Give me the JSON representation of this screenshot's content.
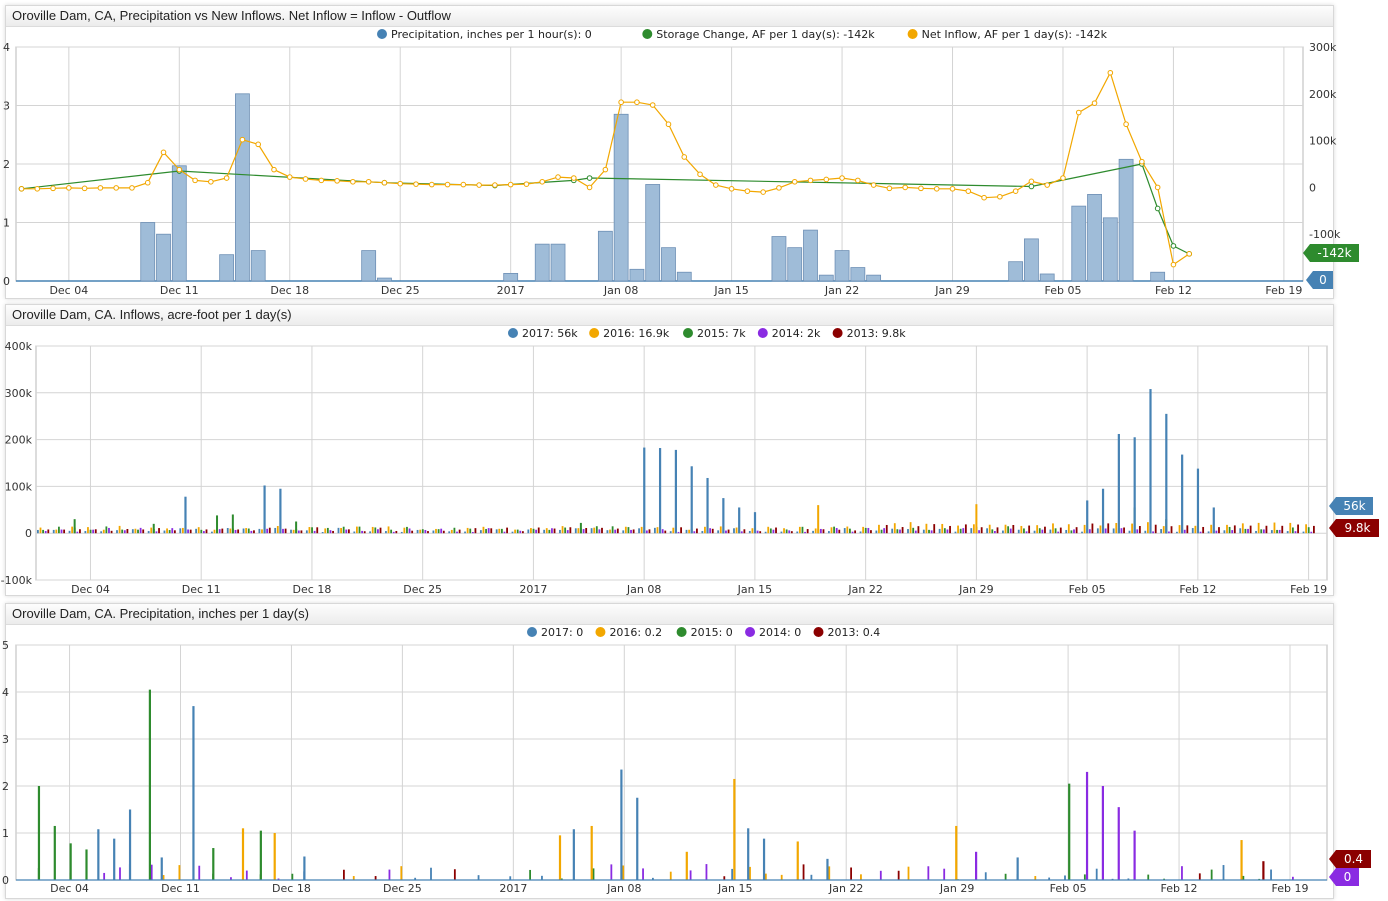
{
  "colors": {
    "blue": "#4682b4",
    "bar_fill": "#9fbcd8",
    "orange": "#f2a700",
    "green": "#2e8b2e",
    "purple": "#8a2be2",
    "maroon": "#8b0000",
    "grid": "#d4d4d4"
  },
  "chart_data": [
    {
      "type": "bar",
      "title": "Oroville Dam, CA, Precipitation vs New Inflows. Net Inflow = Inflow - Outflow",
      "legend": [
        "Precipitation, inches per 1 hour(s): 0",
        "Storage Change, AF per 1 day(s): -142k",
        "Net Inflow, AF per 1 day(s): -142k"
      ],
      "x_ticks": [
        "Dec 04",
        "Dec 11",
        "Dec 18",
        "Dec 25",
        "2017",
        "Jan 08",
        "Jan 15",
        "Jan 22",
        "Jan 29",
        "Feb 05",
        "Feb 12",
        "Feb 19"
      ],
      "y_left_ticks": [
        "4",
        "3",
        "2",
        "1",
        "0"
      ],
      "y_right_ticks": [
        "300k",
        "200k",
        "100k",
        "0",
        "-100k"
      ],
      "ylim_left": [
        0,
        4
      ],
      "ylim_right": [
        -200000,
        300000
      ],
      "badges": [
        "-142k",
        "0"
      ],
      "precip_bars": [
        {
          "day": 8,
          "value": 1.0
        },
        {
          "day": 9,
          "value": 0.8
        },
        {
          "day": 10,
          "value": 1.97
        },
        {
          "day": 13,
          "value": 0.45
        },
        {
          "day": 14,
          "value": 3.2
        },
        {
          "day": 15,
          "value": 0.52
        },
        {
          "day": 22,
          "value": 0.52
        },
        {
          "day": 23,
          "value": 0.05
        },
        {
          "day": 31,
          "value": 0.13
        },
        {
          "day": 33,
          "value": 0.63
        },
        {
          "day": 34,
          "value": 0.63
        },
        {
          "day": 37,
          "value": 0.85
        },
        {
          "day": 38,
          "value": 2.85
        },
        {
          "day": 39,
          "value": 0.2
        },
        {
          "day": 40,
          "value": 1.65
        },
        {
          "day": 41,
          "value": 0.57
        },
        {
          "day": 42,
          "value": 0.15
        },
        {
          "day": 48,
          "value": 0.76
        },
        {
          "day": 49,
          "value": 0.57
        },
        {
          "day": 50,
          "value": 0.87
        },
        {
          "day": 51,
          "value": 0.1
        },
        {
          "day": 52,
          "value": 0.52
        },
        {
          "day": 53,
          "value": 0.23
        },
        {
          "day": 54,
          "value": 0.1
        },
        {
          "day": 63,
          "value": 0.33
        },
        {
          "day": 64,
          "value": 0.72
        },
        {
          "day": 65,
          "value": 0.12
        },
        {
          "day": 67,
          "value": 1.28
        },
        {
          "day": 68,
          "value": 1.48
        },
        {
          "day": 69,
          "value": 1.08
        },
        {
          "day": 70,
          "value": 2.08
        },
        {
          "day": 72,
          "value": 0.15
        }
      ],
      "net_inflow": [
        {
          "day": 0,
          "value": -3000
        },
        {
          "day": 1,
          "value": -3000
        },
        {
          "day": 2,
          "value": -2000
        },
        {
          "day": 3,
          "value": -1000
        },
        {
          "day": 4,
          "value": -2000
        },
        {
          "day": 5,
          "value": -1000
        },
        {
          "day": 6,
          "value": -1000
        },
        {
          "day": 7,
          "value": -1000
        },
        {
          "day": 8,
          "value": 10000
        },
        {
          "day": 9,
          "value": 75000
        },
        {
          "day": 10,
          "value": 38000
        },
        {
          "day": 11,
          "value": 15000
        },
        {
          "day": 12,
          "value": 12000
        },
        {
          "day": 13,
          "value": 20000
        },
        {
          "day": 14,
          "value": 102000
        },
        {
          "day": 15,
          "value": 92000
        },
        {
          "day": 16,
          "value": 38000
        },
        {
          "day": 17,
          "value": 22000
        },
        {
          "day": 18,
          "value": 18000
        },
        {
          "day": 19,
          "value": 15000
        },
        {
          "day": 20,
          "value": 14000
        },
        {
          "day": 21,
          "value": 12000
        },
        {
          "day": 22,
          "value": 12000
        },
        {
          "day": 23,
          "value": 10000
        },
        {
          "day": 24,
          "value": 8000
        },
        {
          "day": 25,
          "value": 7000
        },
        {
          "day": 26,
          "value": 6000
        },
        {
          "day": 27,
          "value": 6000
        },
        {
          "day": 28,
          "value": 6000
        },
        {
          "day": 29,
          "value": 5000
        },
        {
          "day": 30,
          "value": 5000
        },
        {
          "day": 31,
          "value": 6000
        },
        {
          "day": 32,
          "value": 7000
        },
        {
          "day": 33,
          "value": 12000
        },
        {
          "day": 34,
          "value": 22000
        },
        {
          "day": 35,
          "value": 20000
        },
        {
          "day": 36,
          "value": 0
        },
        {
          "day": 37,
          "value": 38000
        },
        {
          "day": 38,
          "value": 182000
        },
        {
          "day": 39,
          "value": 182000
        },
        {
          "day": 40,
          "value": 176000
        },
        {
          "day": 41,
          "value": 135000
        },
        {
          "day": 42,
          "value": 65000
        },
        {
          "day": 43,
          "value": 28000
        },
        {
          "day": 44,
          "value": 5000
        },
        {
          "day": 45,
          "value": -3000
        },
        {
          "day": 46,
          "value": -8000
        },
        {
          "day": 47,
          "value": -10000
        },
        {
          "day": 48,
          "value": -1000
        },
        {
          "day": 49,
          "value": 12000
        },
        {
          "day": 50,
          "value": 15000
        },
        {
          "day": 51,
          "value": 17000
        },
        {
          "day": 52,
          "value": 20000
        },
        {
          "day": 53,
          "value": 15000
        },
        {
          "day": 54,
          "value": 5000
        },
        {
          "day": 55,
          "value": -2000
        },
        {
          "day": 56,
          "value": 0
        },
        {
          "day": 57,
          "value": -2000
        },
        {
          "day": 58,
          "value": -3000
        },
        {
          "day": 59,
          "value": -3000
        },
        {
          "day": 60,
          "value": -8000
        },
        {
          "day": 61,
          "value": -22000
        },
        {
          "day": 62,
          "value": -20000
        },
        {
          "day": 63,
          "value": -8000
        },
        {
          "day": 64,
          "value": 13000
        },
        {
          "day": 65,
          "value": 5000
        },
        {
          "day": 66,
          "value": 20000
        },
        {
          "day": 67,
          "value": 160000
        },
        {
          "day": 68,
          "value": 180000
        },
        {
          "day": 69,
          "value": 245000
        },
        {
          "day": 70,
          "value": 135000
        },
        {
          "day": 71,
          "value": 55000
        },
        {
          "day": 72,
          "value": 0
        },
        {
          "day": 73,
          "value": -165000
        },
        {
          "day": 74,
          "value": -142000
        }
      ],
      "storage_change": [
        {
          "day": 0,
          "value": -3000
        },
        {
          "day": 10,
          "value": 35000
        },
        {
          "day": 23,
          "value": 10000
        },
        {
          "day": 30,
          "value": 4000
        },
        {
          "day": 35,
          "value": 15000
        },
        {
          "day": 36,
          "value": 20000
        },
        {
          "day": 64,
          "value": 2000
        },
        {
          "day": 71,
          "value": 50000
        },
        {
          "day": 72,
          "value": -45000
        },
        {
          "day": 73,
          "value": -125000
        },
        {
          "day": 74,
          "value": -142000
        }
      ]
    },
    {
      "type": "bar",
      "title": "Oroville Dam, CA. Inflows, acre-foot per 1 day(s)",
      "legend": [
        "2017: 56k",
        "2016: 16.9k",
        "2015: 7k",
        "2014: 2k",
        "2013: 9.8k"
      ],
      "x_ticks": [
        "Dec 04",
        "Dec 11",
        "Dec 18",
        "Dec 25",
        "2017",
        "Jan 08",
        "Jan 15",
        "Jan 22",
        "Jan 29",
        "Feb 05",
        "Feb 12",
        "Feb 19"
      ],
      "y_ticks": [
        "400k",
        "300k",
        "200k",
        "100k",
        "0",
        "-100k"
      ],
      "ylim": [
        -100000,
        400000
      ],
      "badges": [
        "56k",
        "9.8k"
      ],
      "series_2017": [
        {
          "day": 9,
          "value": 78000
        },
        {
          "day": 14,
          "value": 102000
        },
        {
          "day": 15,
          "value": 95000
        },
        {
          "day": 38,
          "value": 183000
        },
        {
          "day": 39,
          "value": 182000
        },
        {
          "day": 40,
          "value": 178000
        },
        {
          "day": 41,
          "value": 143000
        },
        {
          "day": 42,
          "value": 118000
        },
        {
          "day": 43,
          "value": 75000
        },
        {
          "day": 44,
          "value": 55000
        },
        {
          "day": 45,
          "value": 45000
        },
        {
          "day": 66,
          "value": 70000
        },
        {
          "day": 67,
          "value": 95000
        },
        {
          "day": 68,
          "value": 212000
        },
        {
          "day": 69,
          "value": 205000
        },
        {
          "day": 70,
          "value": 308000
        },
        {
          "day": 71,
          "value": 255000
        },
        {
          "day": 72,
          "value": 168000
        },
        {
          "day": 73,
          "value": 138000
        },
        {
          "day": 74,
          "value": 55000
        }
      ]
    },
    {
      "type": "bar",
      "title": "Oroville Dam, CA. Precipitation, inches per 1 day(s)",
      "legend": [
        "2017: 0",
        "2016: 0.2",
        "2015: 0",
        "2014: 0",
        "2013: 0.4"
      ],
      "x_ticks": [
        "Dec 04",
        "Dec 11",
        "Dec 18",
        "Dec 25",
        "2017",
        "Jan 08",
        "Jan 15",
        "Jan 22",
        "Jan 29",
        "Feb 05",
        "Feb 12",
        "Feb 19"
      ],
      "y_ticks": [
        "5",
        "4",
        "3",
        "2",
        "1",
        "0"
      ],
      "ylim": [
        0,
        5
      ],
      "badges": [
        "0.4",
        "0"
      ],
      "bars": [
        {
          "day": 1,
          "series": "2015",
          "value": 2.0
        },
        {
          "day": 2,
          "series": "2015",
          "value": 1.15
        },
        {
          "day": 3,
          "series": "2015",
          "value": 0.78
        },
        {
          "day": 4,
          "series": "2015",
          "value": 0.65
        },
        {
          "day": 5,
          "series": "2017",
          "value": 1.08
        },
        {
          "day": 6,
          "series": "2017",
          "value": 0.88
        },
        {
          "day": 7,
          "series": "2017",
          "value": 1.5
        },
        {
          "day": 8,
          "series": "2015",
          "value": 4.05
        },
        {
          "day": 9,
          "series": "2017",
          "value": 0.48
        },
        {
          "day": 11,
          "series": "2017",
          "value": 3.7
        },
        {
          "day": 12,
          "series": "2015",
          "value": 0.68
        },
        {
          "day": 14,
          "series": "2016",
          "value": 1.1
        },
        {
          "day": 15,
          "series": "2015",
          "value": 1.05
        },
        {
          "day": 16,
          "series": "2016",
          "value": 1.0
        },
        {
          "day": 18,
          "series": "2017",
          "value": 0.5
        },
        {
          "day": 34,
          "series": "2016",
          "value": 0.95
        },
        {
          "day": 35,
          "series": "2017",
          "value": 1.08
        },
        {
          "day": 36,
          "series": "2016",
          "value": 1.15
        },
        {
          "day": 38,
          "series": "2017",
          "value": 2.35
        },
        {
          "day": 39,
          "series": "2017",
          "value": 1.75
        },
        {
          "day": 42,
          "series": "2016",
          "value": 0.6
        },
        {
          "day": 45,
          "series": "2016",
          "value": 2.15
        },
        {
          "day": 46,
          "series": "2017",
          "value": 1.1
        },
        {
          "day": 47,
          "series": "2017",
          "value": 0.88
        },
        {
          "day": 49,
          "series": "2016",
          "value": 0.82
        },
        {
          "day": 51,
          "series": "2017",
          "value": 0.45
        },
        {
          "day": 59,
          "series": "2016",
          "value": 1.15
        },
        {
          "day": 60,
          "series": "2014",
          "value": 0.6
        },
        {
          "day": 63,
          "series": "2017",
          "value": 0.48
        },
        {
          "day": 66,
          "series": "2015",
          "value": 2.05
        },
        {
          "day": 67,
          "series": "2014",
          "value": 2.3
        },
        {
          "day": 68,
          "series": "2014",
          "value": 2.0
        },
        {
          "day": 69,
          "series": "2014",
          "value": 1.55
        },
        {
          "day": 70,
          "series": "2014",
          "value": 1.05
        },
        {
          "day": 77,
          "series": "2016",
          "value": 0.85
        },
        {
          "day": 78,
          "series": "2013",
          "value": 0.4
        }
      ]
    }
  ]
}
